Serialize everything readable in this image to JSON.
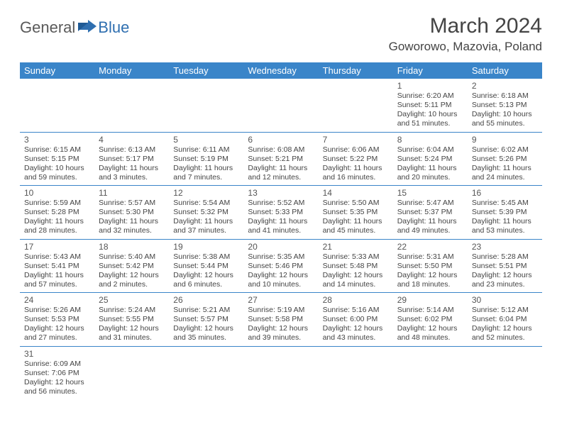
{
  "brand": {
    "part1": "General",
    "part2": "Blue"
  },
  "title": "March 2024",
  "location": "Goworowo, Mazovia, Poland",
  "colors": {
    "header_bg": "#3a85c9",
    "header_text": "#ffffff",
    "border": "#3a85c9",
    "logo_gray": "#5a5a5a",
    "logo_blue": "#2f6fb0",
    "text": "#444444"
  },
  "weekdays": [
    "Sunday",
    "Monday",
    "Tuesday",
    "Wednesday",
    "Thursday",
    "Friday",
    "Saturday"
  ],
  "weeks": [
    [
      null,
      null,
      null,
      null,
      null,
      {
        "n": "1",
        "sr": "6:20 AM",
        "ss": "5:11 PM",
        "dl": "10 hours and 51 minutes."
      },
      {
        "n": "2",
        "sr": "6:18 AM",
        "ss": "5:13 PM",
        "dl": "10 hours and 55 minutes."
      }
    ],
    [
      {
        "n": "3",
        "sr": "6:15 AM",
        "ss": "5:15 PM",
        "dl": "10 hours and 59 minutes."
      },
      {
        "n": "4",
        "sr": "6:13 AM",
        "ss": "5:17 PM",
        "dl": "11 hours and 3 minutes."
      },
      {
        "n": "5",
        "sr": "6:11 AM",
        "ss": "5:19 PM",
        "dl": "11 hours and 7 minutes."
      },
      {
        "n": "6",
        "sr": "6:08 AM",
        "ss": "5:21 PM",
        "dl": "11 hours and 12 minutes."
      },
      {
        "n": "7",
        "sr": "6:06 AM",
        "ss": "5:22 PM",
        "dl": "11 hours and 16 minutes."
      },
      {
        "n": "8",
        "sr": "6:04 AM",
        "ss": "5:24 PM",
        "dl": "11 hours and 20 minutes."
      },
      {
        "n": "9",
        "sr": "6:02 AM",
        "ss": "5:26 PM",
        "dl": "11 hours and 24 minutes."
      }
    ],
    [
      {
        "n": "10",
        "sr": "5:59 AM",
        "ss": "5:28 PM",
        "dl": "11 hours and 28 minutes."
      },
      {
        "n": "11",
        "sr": "5:57 AM",
        "ss": "5:30 PM",
        "dl": "11 hours and 32 minutes."
      },
      {
        "n": "12",
        "sr": "5:54 AM",
        "ss": "5:32 PM",
        "dl": "11 hours and 37 minutes."
      },
      {
        "n": "13",
        "sr": "5:52 AM",
        "ss": "5:33 PM",
        "dl": "11 hours and 41 minutes."
      },
      {
        "n": "14",
        "sr": "5:50 AM",
        "ss": "5:35 PM",
        "dl": "11 hours and 45 minutes."
      },
      {
        "n": "15",
        "sr": "5:47 AM",
        "ss": "5:37 PM",
        "dl": "11 hours and 49 minutes."
      },
      {
        "n": "16",
        "sr": "5:45 AM",
        "ss": "5:39 PM",
        "dl": "11 hours and 53 minutes."
      }
    ],
    [
      {
        "n": "17",
        "sr": "5:43 AM",
        "ss": "5:41 PM",
        "dl": "11 hours and 57 minutes."
      },
      {
        "n": "18",
        "sr": "5:40 AM",
        "ss": "5:42 PM",
        "dl": "12 hours and 2 minutes."
      },
      {
        "n": "19",
        "sr": "5:38 AM",
        "ss": "5:44 PM",
        "dl": "12 hours and 6 minutes."
      },
      {
        "n": "20",
        "sr": "5:35 AM",
        "ss": "5:46 PM",
        "dl": "12 hours and 10 minutes."
      },
      {
        "n": "21",
        "sr": "5:33 AM",
        "ss": "5:48 PM",
        "dl": "12 hours and 14 minutes."
      },
      {
        "n": "22",
        "sr": "5:31 AM",
        "ss": "5:50 PM",
        "dl": "12 hours and 18 minutes."
      },
      {
        "n": "23",
        "sr": "5:28 AM",
        "ss": "5:51 PM",
        "dl": "12 hours and 23 minutes."
      }
    ],
    [
      {
        "n": "24",
        "sr": "5:26 AM",
        "ss": "5:53 PM",
        "dl": "12 hours and 27 minutes."
      },
      {
        "n": "25",
        "sr": "5:24 AM",
        "ss": "5:55 PM",
        "dl": "12 hours and 31 minutes."
      },
      {
        "n": "26",
        "sr": "5:21 AM",
        "ss": "5:57 PM",
        "dl": "12 hours and 35 minutes."
      },
      {
        "n": "27",
        "sr": "5:19 AM",
        "ss": "5:58 PM",
        "dl": "12 hours and 39 minutes."
      },
      {
        "n": "28",
        "sr": "5:16 AM",
        "ss": "6:00 PM",
        "dl": "12 hours and 43 minutes."
      },
      {
        "n": "29",
        "sr": "5:14 AM",
        "ss": "6:02 PM",
        "dl": "12 hours and 48 minutes."
      },
      {
        "n": "30",
        "sr": "5:12 AM",
        "ss": "6:04 PM",
        "dl": "12 hours and 52 minutes."
      }
    ],
    [
      {
        "n": "31",
        "sr": "6:09 AM",
        "ss": "7:06 PM",
        "dl": "12 hours and 56 minutes."
      },
      null,
      null,
      null,
      null,
      null,
      null
    ]
  ],
  "labels": {
    "sunrise": "Sunrise: ",
    "sunset": "Sunset: ",
    "daylight": "Daylight: "
  }
}
